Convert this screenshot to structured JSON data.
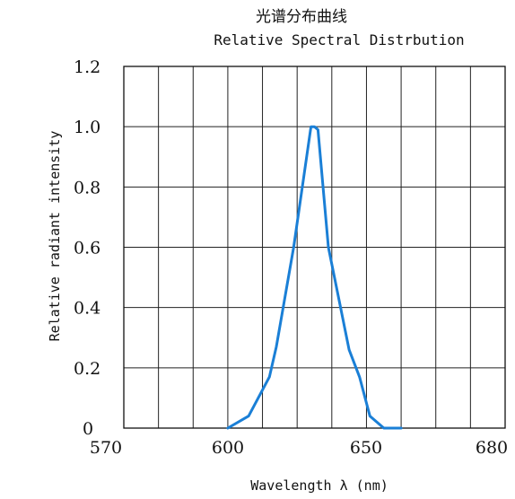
{
  "chart_data": {
    "type": "line",
    "title": "光谱分布曲线",
    "subtitle": "Relative Spectral Distrbution",
    "xlabel": "Wavelength  λ  (nm)",
    "ylabel": "Relative radiant intensity",
    "xlim": [
      570,
      680
    ],
    "ylim": [
      0,
      1.2
    ],
    "x_ticks": [
      {
        "value": 570,
        "label": "570"
      },
      {
        "value": 600,
        "label": "600"
      },
      {
        "value": 650,
        "label": "650"
      },
      {
        "value": 680,
        "label": "680"
      }
    ],
    "y_ticks": [
      {
        "value": 0,
        "label": "0"
      },
      {
        "value": 0.2,
        "label": "0.2"
      },
      {
        "value": 0.4,
        "label": "0.4"
      },
      {
        "value": 0.6,
        "label": "0.6"
      },
      {
        "value": 0.8,
        "label": "0.8"
      },
      {
        "value": 1.0,
        "label": "1.0"
      },
      {
        "value": 1.2,
        "label": "1.2"
      }
    ],
    "grid": true,
    "x_gridlines": [
      570,
      580,
      590,
      600,
      610,
      620,
      630,
      640,
      650,
      660,
      670,
      680
    ],
    "y_gridlines": [
      0,
      0.2,
      0.4,
      0.6,
      0.8,
      1.0,
      1.2
    ],
    "series": [
      {
        "color": "#1a7fd6",
        "x": [
          600,
          606,
          612,
          614,
          619,
          624,
          625,
          626,
          629,
          635,
          638,
          641,
          645,
          650
        ],
        "y": [
          0,
          0.04,
          0.17,
          0.27,
          0.6,
          1.0,
          1.0,
          0.99,
          0.6,
          0.26,
          0.17,
          0.04,
          0.0,
          0.0
        ]
      }
    ]
  }
}
